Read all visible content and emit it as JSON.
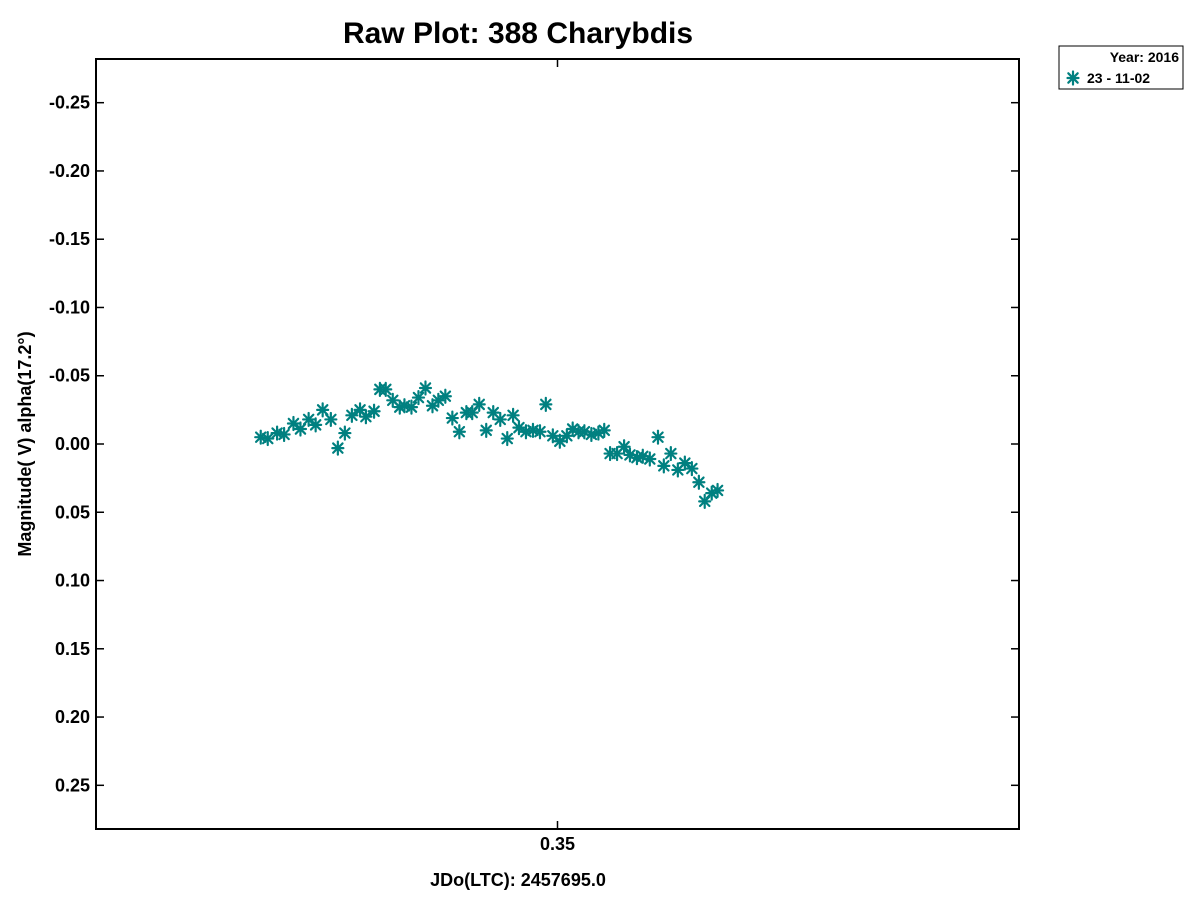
{
  "chart_data": {
    "type": "scatter",
    "title": "Raw Plot: 388 Charybdis",
    "xlabel": "JDo(LTC): 2457695.0",
    "ylabel": "Magnitude( V) alpha(17.2°)",
    "xlim": [
      0.3105,
      0.3895
    ],
    "ylim": [
      0.282,
      -0.282
    ],
    "y_inverted": true,
    "xticks": [
      {
        "value": 0.35,
        "label": "0.35"
      }
    ],
    "yticks": [
      {
        "value": -0.25,
        "label": "-0.25"
      },
      {
        "value": -0.2,
        "label": "-0.20"
      },
      {
        "value": -0.15,
        "label": "-0.15"
      },
      {
        "value": -0.1,
        "label": "-0.10"
      },
      {
        "value": -0.05,
        "label": "-0.05"
      },
      {
        "value": 0.0,
        "label": "0.00"
      },
      {
        "value": 0.05,
        "label": "0.05"
      },
      {
        "value": 0.1,
        "label": "0.10"
      },
      {
        "value": 0.15,
        "label": "0.15"
      },
      {
        "value": 0.2,
        "label": "0.20"
      },
      {
        "value": 0.25,
        "label": "0.25"
      }
    ],
    "grid": false,
    "legend": {
      "position": "top-right-outside",
      "header": "Year: 2016",
      "entries": [
        {
          "label": "23 - 11-02",
          "marker": "asterisk",
          "color": "#008080"
        }
      ]
    },
    "series": [
      {
        "label": "23 - 11-02",
        "color": "#008080",
        "marker": "asterisk",
        "points": [
          [
            0.3246,
            -0.005
          ],
          [
            0.3252,
            -0.004
          ],
          [
            0.326,
            -0.008
          ],
          [
            0.3266,
            -0.007
          ],
          [
            0.3274,
            -0.015
          ],
          [
            0.328,
            -0.011
          ],
          [
            0.3287,
            -0.018
          ],
          [
            0.3293,
            -0.014
          ],
          [
            0.3299,
            -0.025
          ],
          [
            0.3306,
            -0.018
          ],
          [
            0.3312,
            0.003
          ],
          [
            0.3318,
            -0.008
          ],
          [
            0.3324,
            -0.021
          ],
          [
            0.3331,
            -0.025
          ],
          [
            0.3336,
            -0.02
          ],
          [
            0.3343,
            -0.024
          ],
          [
            0.3348,
            -0.04
          ],
          [
            0.3353,
            -0.04
          ],
          [
            0.3359,
            -0.032
          ],
          [
            0.3365,
            -0.027
          ],
          [
            0.3369,
            -0.028
          ],
          [
            0.3375,
            -0.027
          ],
          [
            0.3381,
            -0.034
          ],
          [
            0.3387,
            -0.041
          ],
          [
            0.3393,
            -0.028
          ],
          [
            0.3398,
            -0.032
          ],
          [
            0.3404,
            -0.035
          ],
          [
            0.341,
            -0.019
          ],
          [
            0.3416,
            -0.009
          ],
          [
            0.3422,
            -0.023
          ],
          [
            0.3427,
            -0.023
          ],
          [
            0.3433,
            -0.029
          ],
          [
            0.3439,
            -0.01
          ],
          [
            0.3445,
            -0.023
          ],
          [
            0.3451,
            -0.018
          ],
          [
            0.3457,
            -0.004
          ],
          [
            0.3462,
            -0.021
          ],
          [
            0.3467,
            -0.012
          ],
          [
            0.3473,
            -0.009
          ],
          [
            0.3479,
            -0.01
          ],
          [
            0.3485,
            -0.009
          ],
          [
            0.349,
            -0.029
          ],
          [
            0.3496,
            -0.006
          ],
          [
            0.3502,
            -0.002
          ],
          [
            0.3508,
            -0.006
          ],
          [
            0.3513,
            -0.011
          ],
          [
            0.3518,
            -0.009
          ],
          [
            0.3523,
            -0.009
          ],
          [
            0.3529,
            -0.007
          ],
          [
            0.3535,
            -0.008
          ],
          [
            0.354,
            -0.01
          ],
          [
            0.3545,
            0.007
          ],
          [
            0.3551,
            0.007
          ],
          [
            0.3557,
            0.002
          ],
          [
            0.3562,
            0.008
          ],
          [
            0.3568,
            0.01
          ],
          [
            0.3573,
            0.009
          ],
          [
            0.3579,
            0.011
          ],
          [
            0.3586,
            -0.005
          ],
          [
            0.3591,
            0.016
          ],
          [
            0.3597,
            0.007
          ],
          [
            0.3603,
            0.019
          ],
          [
            0.3609,
            0.014
          ],
          [
            0.3615,
            0.018
          ],
          [
            0.3621,
            0.028
          ],
          [
            0.3626,
            0.042
          ],
          [
            0.3632,
            0.036
          ],
          [
            0.3637,
            0.034
          ]
        ]
      }
    ]
  }
}
